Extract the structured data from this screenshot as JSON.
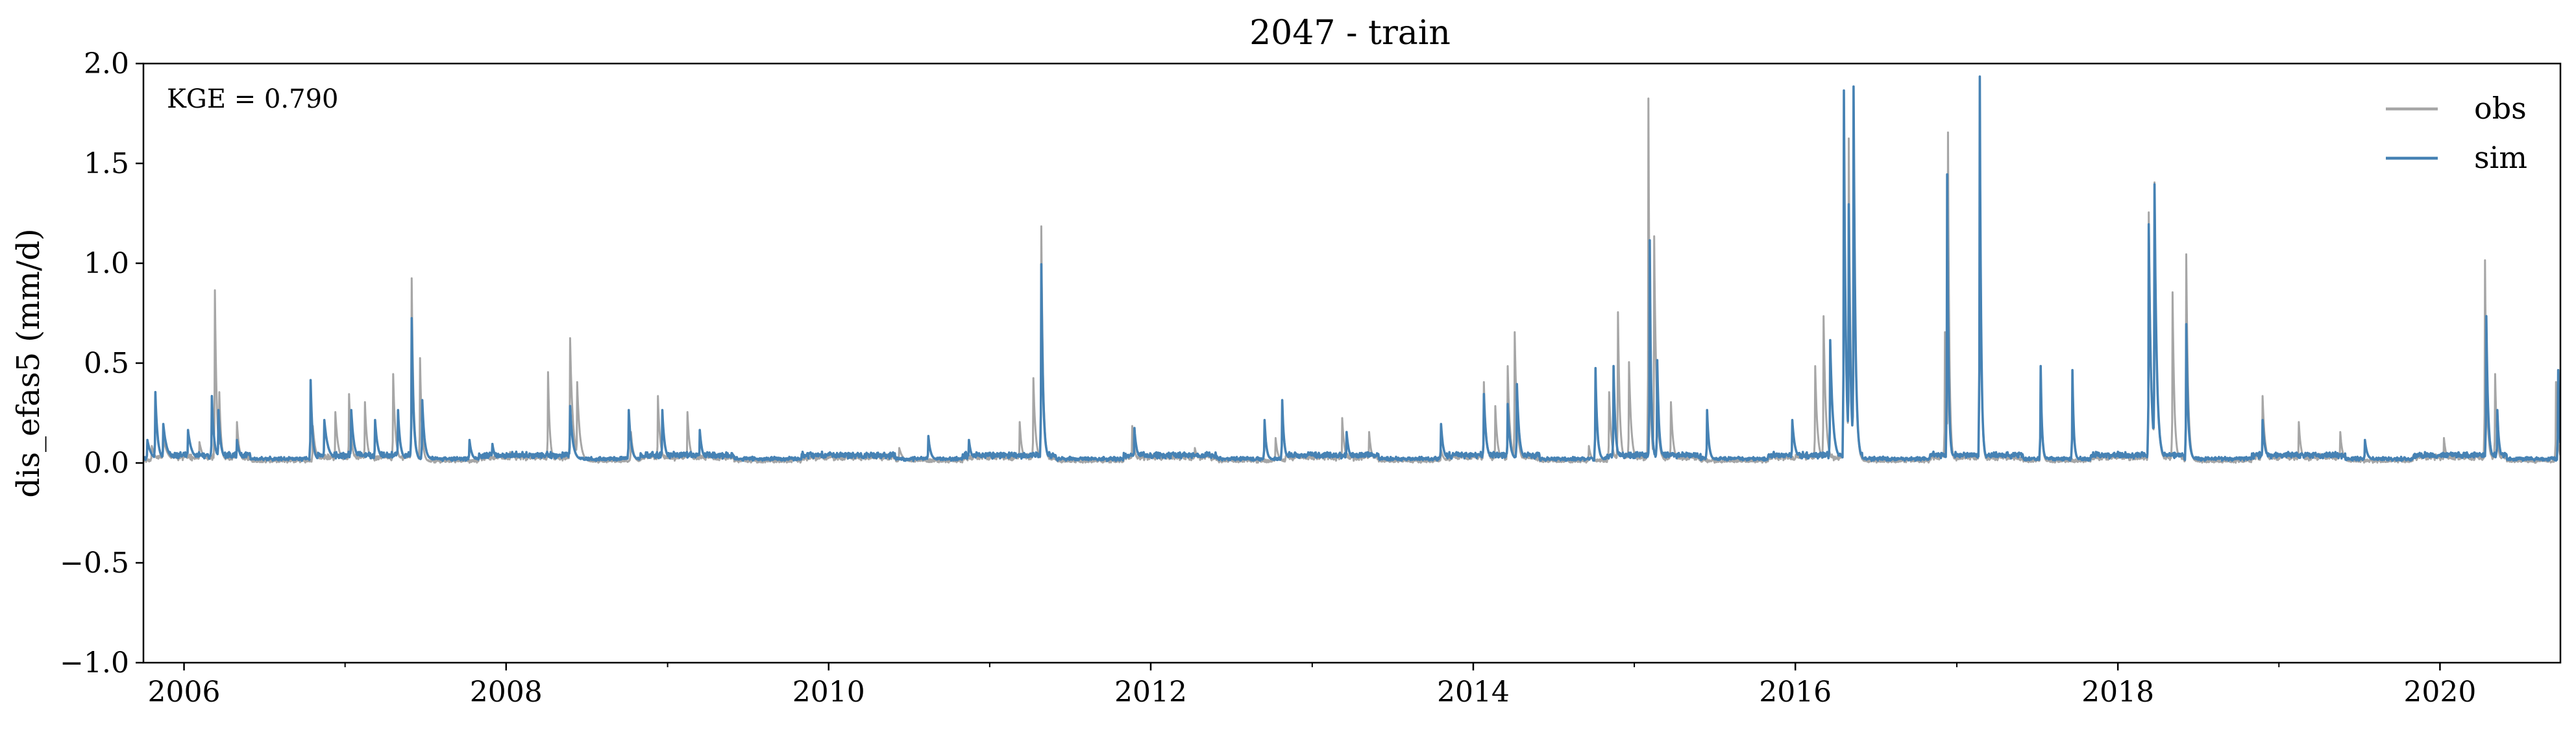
{
  "chart_data": {
    "type": "line",
    "title": "2047 - train",
    "ylabel": "dis_efas5 (mm/d)",
    "xlabel": "",
    "annotation": "KGE = 0.790",
    "xlim": [
      "2005-10-01",
      "2020-09-30"
    ],
    "ylim": [
      -1.0,
      2.0
    ],
    "yticks": [
      -1.0,
      -0.5,
      0.0,
      0.5,
      1.0,
      1.5,
      2.0
    ],
    "ytick_labels": [
      "−1.0",
      "−0.5",
      "0.0",
      "0.5",
      "1.0",
      "1.5",
      "2.0"
    ],
    "xticks": [
      "2006-01-01",
      "2008-01-01",
      "2010-01-01",
      "2012-01-01",
      "2014-01-01",
      "2016-01-01",
      "2018-01-01",
      "2020-01-01"
    ],
    "xtick_labels": [
      "2006",
      "2008",
      "2010",
      "2012",
      "2014",
      "2016",
      "2018",
      "2020"
    ],
    "grid": false,
    "legend_position": "top-right",
    "series": [
      {
        "name": "obs",
        "color": "#a6a6a6",
        "baseline": 0.005,
        "peaks": [
          [
            "2005-10-20",
            0.08,
            8
          ],
          [
            "2005-11-15",
            0.12,
            10
          ],
          [
            "2006-02-05",
            0.1,
            8
          ],
          [
            "2006-03-12",
            0.86,
            4
          ],
          [
            "2006-03-22",
            0.35,
            4
          ],
          [
            "2006-05-01",
            0.2,
            5
          ],
          [
            "2006-10-20",
            0.18,
            6
          ],
          [
            "2006-12-10",
            0.25,
            6
          ],
          [
            "2007-01-10",
            0.34,
            5
          ],
          [
            "2007-02-15",
            0.3,
            5
          ],
          [
            "2007-04-20",
            0.44,
            5
          ],
          [
            "2007-06-01",
            0.92,
            4
          ],
          [
            "2007-06-20",
            0.52,
            4
          ],
          [
            "2008-01-10",
            0.05,
            8
          ],
          [
            "2008-04-05",
            0.45,
            4
          ],
          [
            "2008-05-25",
            0.62,
            6
          ],
          [
            "2008-06-10",
            0.4,
            6
          ],
          [
            "2008-10-10",
            0.15,
            5
          ],
          [
            "2008-12-10",
            0.33,
            5
          ],
          [
            "2009-02-15",
            0.25,
            5
          ],
          [
            "2010-06-10",
            0.07,
            8
          ],
          [
            "2011-03-10",
            0.2,
            5
          ],
          [
            "2011-04-10",
            0.42,
            5
          ],
          [
            "2011-04-28",
            1.18,
            4
          ],
          [
            "2011-11-20",
            0.18,
            5
          ],
          [
            "2012-04-10",
            0.07,
            6
          ],
          [
            "2012-10-10",
            0.12,
            5
          ],
          [
            "2013-03-10",
            0.22,
            5
          ],
          [
            "2013-05-10",
            0.15,
            5
          ],
          [
            "2013-10-20",
            0.06,
            6
          ],
          [
            "2014-01-25",
            0.4,
            5
          ],
          [
            "2014-02-20",
            0.28,
            5
          ],
          [
            "2014-03-20",
            0.48,
            5
          ],
          [
            "2014-04-05",
            0.65,
            5
          ],
          [
            "2014-09-20",
            0.08,
            5
          ],
          [
            "2014-11-05",
            0.35,
            5
          ],
          [
            "2014-11-25",
            0.75,
            4
          ],
          [
            "2014-12-20",
            0.5,
            5
          ],
          [
            "2015-02-02",
            1.82,
            3
          ],
          [
            "2015-02-15",
            1.13,
            5
          ],
          [
            "2015-03-25",
            0.3,
            5
          ],
          [
            "2016-02-15",
            0.48,
            5
          ],
          [
            "2016-03-05",
            0.73,
            5
          ],
          [
            "2016-04-20",
            1.86,
            4
          ],
          [
            "2016-05-01",
            1.62,
            4
          ],
          [
            "2016-05-12",
            1.88,
            4
          ],
          [
            "2016-12-05",
            0.65,
            4
          ],
          [
            "2016-12-12",
            1.65,
            3
          ],
          [
            "2017-02-22",
            1.9,
            3
          ],
          [
            "2017-07-10",
            0.48,
            3
          ],
          [
            "2018-03-12",
            1.25,
            5
          ],
          [
            "2018-03-25",
            1.4,
            5
          ],
          [
            "2018-05-05",
            0.85,
            4
          ],
          [
            "2018-06-05",
            1.04,
            4
          ],
          [
            "2018-11-25",
            0.33,
            5
          ],
          [
            "2019-02-15",
            0.2,
            5
          ],
          [
            "2019-05-20",
            0.15,
            5
          ],
          [
            "2020-01-10",
            0.12,
            5
          ],
          [
            "2020-04-12",
            1.01,
            4
          ],
          [
            "2020-05-05",
            0.44,
            4
          ],
          [
            "2020-09-20",
            0.4,
            4
          ]
        ]
      },
      {
        "name": "sim",
        "color": "#4682b4",
        "baseline": 0.015,
        "peaks": [
          [
            "2005-10-10",
            0.1,
            8
          ],
          [
            "2005-10-28",
            0.34,
            5
          ],
          [
            "2005-11-15",
            0.18,
            8
          ],
          [
            "2006-01-10",
            0.15,
            8
          ],
          [
            "2006-03-05",
            0.32,
            5
          ],
          [
            "2006-03-20",
            0.25,
            5
          ],
          [
            "2006-05-01",
            0.1,
            6
          ],
          [
            "2006-10-15",
            0.4,
            4
          ],
          [
            "2006-11-15",
            0.2,
            8
          ],
          [
            "2007-01-15",
            0.25,
            6
          ],
          [
            "2007-03-10",
            0.2,
            6
          ],
          [
            "2007-05-01",
            0.25,
            5
          ],
          [
            "2007-06-01",
            0.71,
            4
          ],
          [
            "2007-06-25",
            0.3,
            5
          ],
          [
            "2007-10-10",
            0.1,
            5
          ],
          [
            "2007-12-01",
            0.08,
            5
          ],
          [
            "2008-05-25",
            0.27,
            6
          ],
          [
            "2008-10-05",
            0.25,
            5
          ],
          [
            "2008-12-20",
            0.25,
            5
          ],
          [
            "2009-03-15",
            0.15,
            5
          ],
          [
            "2010-08-15",
            0.12,
            5
          ],
          [
            "2010-11-15",
            0.1,
            5
          ],
          [
            "2011-04-28",
            0.98,
            4
          ],
          [
            "2011-11-25",
            0.16,
            5
          ],
          [
            "2012-09-15",
            0.2,
            4
          ],
          [
            "2012-10-25",
            0.3,
            4
          ],
          [
            "2013-03-20",
            0.14,
            5
          ],
          [
            "2013-10-20",
            0.18,
            5
          ],
          [
            "2014-01-25",
            0.33,
            5
          ],
          [
            "2014-03-20",
            0.28,
            5
          ],
          [
            "2014-04-10",
            0.38,
            5
          ],
          [
            "2014-10-05",
            0.46,
            4
          ],
          [
            "2014-11-15",
            0.47,
            4
          ],
          [
            "2015-02-05",
            1.1,
            3
          ],
          [
            "2015-02-22",
            0.5,
            4
          ],
          [
            "2015-06-15",
            0.25,
            4
          ],
          [
            "2015-12-25",
            0.2,
            6
          ],
          [
            "2016-03-20",
            0.6,
            6
          ],
          [
            "2016-04-20",
            1.85,
            4
          ],
          [
            "2016-05-01",
            1.28,
            4
          ],
          [
            "2016-05-12",
            1.87,
            4
          ],
          [
            "2016-12-10",
            1.43,
            3
          ],
          [
            "2017-02-22",
            1.92,
            3
          ],
          [
            "2017-07-10",
            0.47,
            3
          ],
          [
            "2017-09-20",
            0.45,
            3
          ],
          [
            "2018-03-12",
            1.18,
            5
          ],
          [
            "2018-03-25",
            1.38,
            5
          ],
          [
            "2018-06-05",
            0.68,
            4
          ],
          [
            "2018-11-25",
            0.2,
            5
          ],
          [
            "2019-07-15",
            0.1,
            5
          ],
          [
            "2020-04-15",
            0.72,
            4
          ],
          [
            "2020-05-10",
            0.25,
            4
          ],
          [
            "2020-09-25",
            0.45,
            3
          ]
        ]
      }
    ]
  }
}
